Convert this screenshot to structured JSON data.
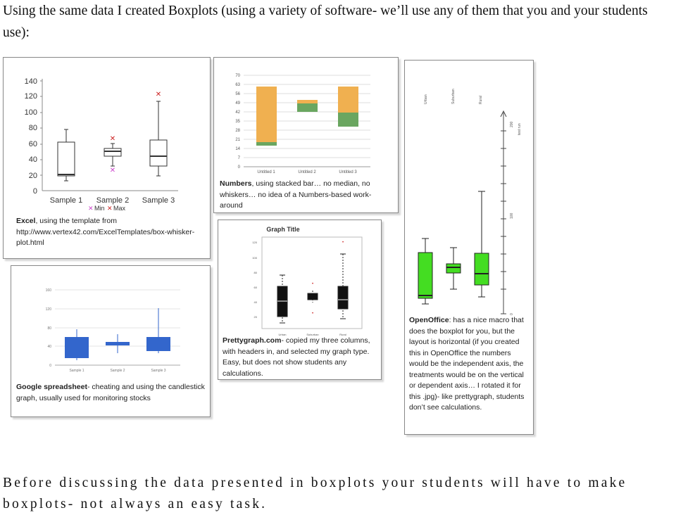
{
  "intro_text": "Using the same data I created Boxplots (using a variety of software- we’ll use any of them that you and your students use):",
  "excel": {
    "y_ticks": [
      "140",
      "120",
      "100",
      "80",
      "60",
      "40",
      "20",
      "0"
    ],
    "x_labels": [
      "Sample 1",
      "Sample 2",
      "Sample 3"
    ],
    "legend_min": "Min",
    "legend_max": "Max",
    "caption_bold": "Excel",
    "caption_rest": ", using  the template from http://www.vertex42.com/ExcelTemplates/box-whisker-plot.html"
  },
  "numbers": {
    "y_ticks": [
      "70",
      "63",
      "56",
      "49",
      "42",
      "35",
      "28",
      "21",
      "14",
      "7",
      "0"
    ],
    "x_labels": [
      "Untitled 1",
      "Untitled 2",
      "Untitled 3"
    ],
    "caption_bold": "Numbers",
    "caption_rest": ", using stacked bar… no median, no whiskers… no idea of a Numbers-based work-around"
  },
  "google": {
    "y_ticks": [
      "160",
      "120",
      "80",
      "40",
      "0"
    ],
    "x_labels": [
      "Sample 1",
      "Sample 2",
      "Sample 3"
    ],
    "caption_bold": "Google spreadsheet",
    "caption_rest": "- cheating and using the candlestick graph, usually used for monitoring stocks"
  },
  "pretty": {
    "title": "Graph Title",
    "y_ticks": [
      "120",
      "100",
      "80",
      "60",
      "40",
      "20"
    ],
    "x_labels": [
      "Urban",
      "Suburban",
      "Rural"
    ],
    "caption_bold": "Prettygraph.com",
    "caption_rest": "- copied my three columns, with headers in, and selected my graph type. Easy, but does not show students any calculations."
  },
  "openoffice": {
    "col_labels": [
      "Urban",
      "Suburban",
      "Rural"
    ],
    "axis_labels": [
      "200",
      "100",
      "0"
    ],
    "axis_title": "test run",
    "caption_bold": "OpenOffice",
    "caption_rest": ": has a nice macro that does the boxplot for you, but the layout is horizontal (if you created this in OpenOffice the numbers would be the independent axis, the treatments would be on the vertical or dependent axis… I rotated it for this .jpg)- like prettygraph, students don’t see calculations."
  },
  "bottom_text": "Before discussing the data presented in boxplots your students will have to make boxplots- not always an easy task.",
  "colors": {
    "orange": "#f0b050",
    "green": "#6aa660",
    "blue": "#3366cc",
    "lime": "#44dd22",
    "red": "#cc2222",
    "pink": "#cc44cc"
  }
}
